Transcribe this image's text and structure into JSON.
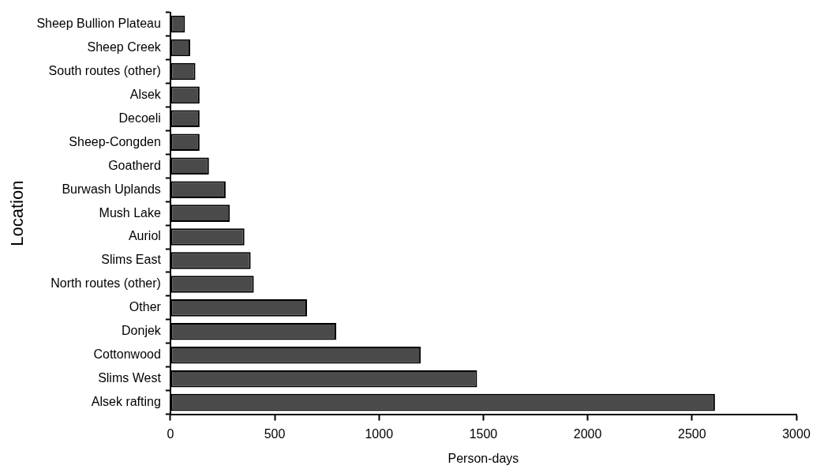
{
  "chart_data": {
    "type": "bar",
    "orientation": "horizontal",
    "xlabel": "Person-days",
    "ylabel": "Location",
    "categories": [
      "Sheep Bullion Plateau",
      "Sheep Creek",
      "South routes (other)",
      "Alsek",
      "Decoeli",
      "Sheep-Congden",
      "Goatherd",
      "Burwash Uplands",
      "Mush Lake",
      "Auriol",
      "Slims East",
      "North routes (other)",
      "Other",
      "Donjek",
      "Cottonwood",
      "Slims West",
      "Alsek rafting"
    ],
    "values": [
      70,
      95,
      120,
      140,
      140,
      140,
      185,
      265,
      285,
      355,
      385,
      400,
      655,
      795,
      1200,
      1470,
      2610
    ],
    "color": "#4a4a4a",
    "xlim": [
      0,
      3000
    ],
    "xticks": [
      0,
      500,
      1000,
      1500,
      2000,
      2500,
      3000
    ],
    "grid": false,
    "legend": false
  }
}
